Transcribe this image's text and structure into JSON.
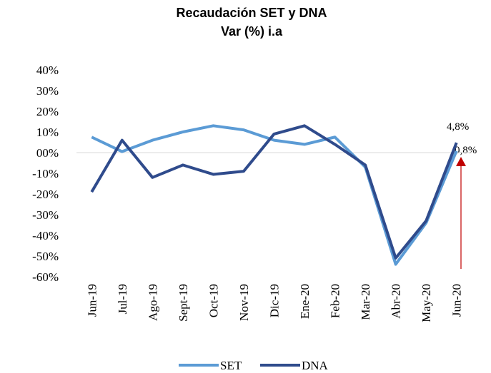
{
  "chart_data": {
    "type": "line",
    "title": "Recaudación SET y DNA",
    "subtitle": "Var (%) i.a",
    "categories": [
      "Jun-19",
      "Jul-19",
      "Ago-19",
      "Sept-19",
      "Oct-19",
      "Nov-19",
      "Dic-19",
      "Ene-20",
      "Feb-20",
      "Mar-20",
      "Abr-20",
      "May-20",
      "Jun-20"
    ],
    "series": [
      {
        "name": "SET",
        "color": "#5b9bd5",
        "values": [
          7.5,
          0.5,
          6,
          10,
          13,
          11,
          6,
          4,
          7.5,
          -7,
          -54,
          -34,
          0.8
        ]
      },
      {
        "name": "DNA",
        "color": "#2f4b8c",
        "values": [
          -19,
          6,
          -12,
          -6,
          -10.5,
          -9,
          9,
          13,
          4,
          -6,
          -51,
          -33,
          4.8
        ]
      }
    ],
    "ylim": [
      -60,
      40
    ],
    "yticks": [
      {
        "value": 40,
        "label": "40%"
      },
      {
        "value": 30,
        "label": "30%"
      },
      {
        "value": 20,
        "label": "20%"
      },
      {
        "value": 10,
        "label": "10%"
      },
      {
        "value": 0,
        "label": "00%"
      },
      {
        "value": -10,
        "label": "-10%"
      },
      {
        "value": -20,
        "label": "-20%"
      },
      {
        "value": -30,
        "label": "-30%"
      },
      {
        "value": -40,
        "label": "-40%"
      },
      {
        "value": -50,
        "label": "-50%"
      },
      {
        "value": -60,
        "label": "-60%"
      }
    ],
    "annotations": [
      {
        "text": "4,8%"
      },
      {
        "text": "0,8%"
      }
    ],
    "legend": "bottom"
  }
}
